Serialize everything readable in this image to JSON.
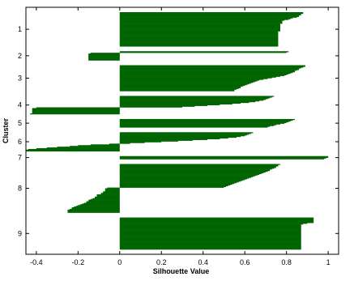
{
  "chart_data": {
    "type": "bar",
    "orientation": "horizontal",
    "xlabel": "Silhouette Value",
    "ylabel": "Cluster",
    "xlim": [
      -0.45,
      1.05
    ],
    "x_ticks": [
      -0.4,
      -0.2,
      0,
      0.2,
      0.4,
      0.6,
      0.8,
      1
    ],
    "x_tick_labels": [
      "-0.4",
      "-0.2",
      "0",
      "0.2",
      "0.4",
      "0.6",
      "0.8",
      "1"
    ],
    "grid": false,
    "bar_color": "#006400",
    "clusters": [
      {
        "label": "1",
        "values": [
          0.88,
          0.88,
          0.87,
          0.87,
          0.86,
          0.86,
          0.85,
          0.83,
          0.82,
          0.81,
          0.79,
          0.78,
          0.78,
          0.78,
          0.78,
          0.77,
          0.77,
          0.77,
          0.77,
          0.77,
          0.77,
          0.77,
          0.77,
          0.77,
          0.77,
          0.76,
          0.76,
          0.76,
          0.76,
          0.76,
          0.76,
          0.76,
          0.76,
          0.76,
          0.76,
          0.76,
          0.76,
          0.76,
          0.76,
          0.76,
          0.76,
          0.76,
          0.76,
          0.76,
          0.76
        ]
      },
      {
        "label": "2",
        "values": [
          0.81,
          0.8,
          -0.14,
          -0.15,
          -0.15,
          -0.15,
          -0.15,
          -0.15,
          -0.15,
          -0.15,
          -0.15,
          -0.15
        ]
      },
      {
        "label": "3",
        "values": [
          0.89,
          0.89,
          0.88,
          0.87,
          0.86,
          0.86,
          0.85,
          0.84,
          0.84,
          0.83,
          0.82,
          0.81,
          0.8,
          0.79,
          0.77,
          0.75,
          0.73,
          0.71,
          0.69,
          0.67,
          0.66,
          0.65,
          0.64,
          0.63,
          0.62,
          0.61,
          0.6,
          0.59,
          0.58,
          0.58,
          0.57,
          0.56,
          0.55,
          0.55
        ]
      },
      {
        "label": "4",
        "values": [
          0.74,
          0.73,
          0.72,
          0.71,
          0.7,
          0.69,
          0.67,
          0.65,
          0.62,
          0.58,
          0.54,
          0.48,
          0.42,
          0.36,
          0.3,
          -0.4,
          -0.42,
          -0.42,
          -0.42,
          -0.42,
          -0.42,
          -0.42,
          -0.42,
          -0.43
        ]
      },
      {
        "label": "5",
        "values": [
          0.84,
          0.83,
          0.82,
          0.81,
          0.8,
          0.79,
          0.77,
          0.75,
          0.74,
          0.72,
          0.71
        ]
      },
      {
        "label": "6",
        "values": [
          0.64,
          0.63,
          0.62,
          0.61,
          0.6,
          0.58,
          0.56,
          0.52,
          0.48,
          0.42,
          0.35,
          0.28,
          0.2,
          0.12,
          0.05,
          -0.05,
          -0.14,
          -0.2,
          -0.24,
          -0.3,
          -0.35,
          -0.4,
          -0.44,
          -0.45,
          -0.45
        ]
      },
      {
        "label": "7",
        "values": [
          1.0,
          1.0,
          0.99,
          0.98
        ]
      },
      {
        "label": "8",
        "values": [
          0.77,
          0.76,
          0.76,
          0.75,
          0.75,
          0.74,
          0.73,
          0.72,
          0.72,
          0.71,
          0.7,
          0.69,
          0.68,
          0.67,
          0.66,
          0.65,
          0.64,
          0.63,
          0.62,
          0.61,
          0.6,
          0.59,
          0.58,
          0.57,
          0.56,
          0.55,
          0.54,
          0.53,
          0.52,
          0.51,
          0.5,
          -0.06,
          -0.07,
          -0.07,
          -0.07,
          -0.07,
          -0.08,
          -0.08,
          -0.09,
          -0.09,
          -0.11,
          -0.11,
          -0.11,
          -0.12,
          -0.12,
          -0.13,
          -0.14,
          -0.15,
          -0.15,
          -0.16,
          -0.16,
          -0.17,
          -0.18,
          -0.19,
          -0.2,
          -0.21,
          -0.22,
          -0.23,
          -0.23,
          -0.24,
          -0.25,
          -0.25,
          -0.25,
          -0.25
        ]
      },
      {
        "label": "9",
        "values": [
          0.93,
          0.93,
          0.93,
          0.93,
          0.93,
          0.93,
          0.93,
          0.9,
          0.88,
          0.87,
          0.87,
          0.87,
          0.87,
          0.87,
          0.87,
          0.87,
          0.87,
          0.87,
          0.87,
          0.87,
          0.87,
          0.87,
          0.87,
          0.87,
          0.87,
          0.87,
          0.87,
          0.87,
          0.87,
          0.87,
          0.87,
          0.87,
          0.87,
          0.87,
          0.87,
          0.87,
          0.87,
          0.87,
          0.87,
          0.87,
          0.87,
          0.87
        ]
      }
    ]
  }
}
